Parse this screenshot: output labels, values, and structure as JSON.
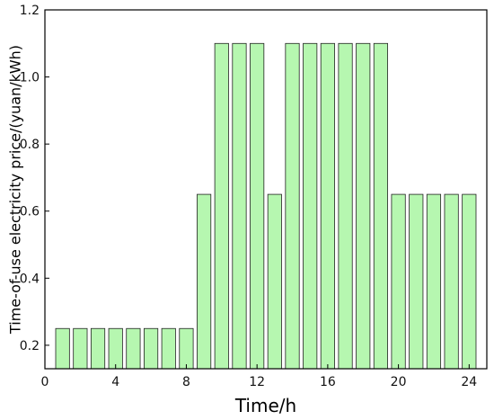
{
  "chart_data": {
    "type": "bar",
    "title": "",
    "xlabel": "Time/h",
    "ylabel": "Time-of-use electricity price/(yuan/kWh)",
    "x": [
      1,
      2,
      3,
      4,
      5,
      6,
      7,
      8,
      9,
      10,
      11,
      12,
      13,
      14,
      15,
      16,
      17,
      18,
      19,
      20,
      21,
      22,
      23,
      24
    ],
    "values": [
      0.25,
      0.25,
      0.25,
      0.25,
      0.25,
      0.25,
      0.25,
      0.25,
      0.65,
      1.1,
      1.1,
      1.1,
      0.65,
      1.1,
      1.1,
      1.1,
      1.1,
      1.1,
      1.1,
      0.65,
      0.65,
      0.65,
      0.65,
      0.65
    ],
    "xlim": [
      0,
      25
    ],
    "ylim": [
      0.13,
      1.2
    ],
    "x_ticks": [
      0,
      4,
      8,
      12,
      16,
      20,
      24
    ],
    "x_tick_labels": [
      "0",
      "4",
      "8",
      "12",
      "16",
      "20",
      "24"
    ],
    "y_ticks": [
      0.2,
      0.4,
      0.6,
      0.8,
      1.0,
      1.2
    ],
    "y_tick_labels": [
      "0.2",
      "0.4",
      "0.6",
      "0.8",
      "1.0",
      "1.2"
    ],
    "grid": false,
    "bar_color": "#b6f7b0",
    "bar_edge_color": "#222222",
    "axis_color": "#000000"
  }
}
